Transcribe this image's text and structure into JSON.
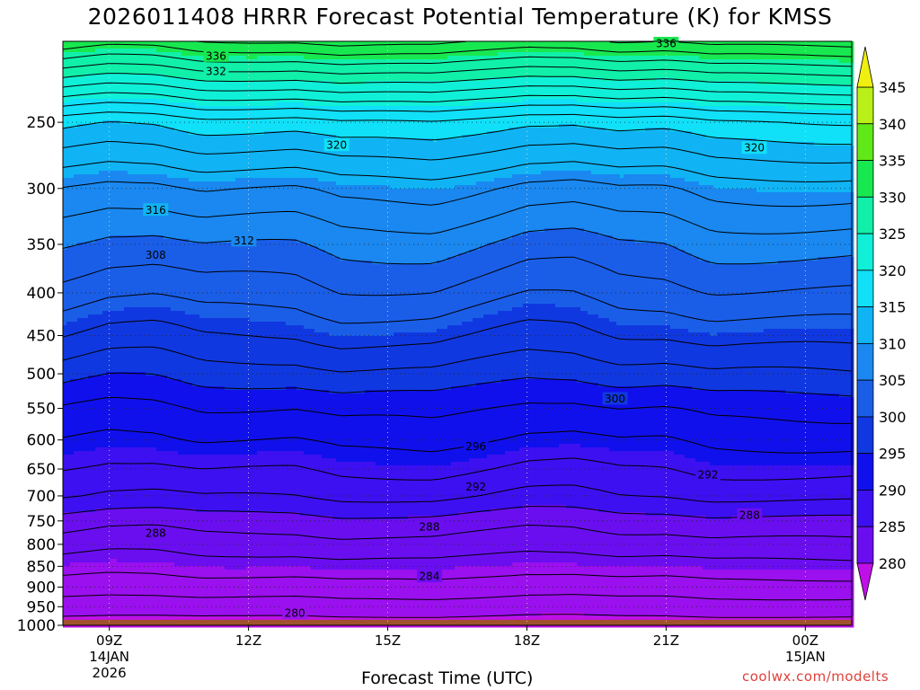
{
  "title": "2026011408 HRRR Forecast Potential Temperature (K) for KMSS",
  "credit": "coolwx.com/modelts",
  "chart_data": {
    "type": "heatmap",
    "title": "2026011408 HRRR Forecast Potential Temperature (K) for KMSS",
    "xlabel": "Forecast Time (UTC)",
    "ylabel": "",
    "x_hours": [
      0,
      1,
      2,
      3,
      4,
      5,
      6,
      7,
      8,
      9,
      10,
      11,
      12,
      13,
      14,
      15,
      16,
      17
    ],
    "x_ticks": [
      {
        "hour": 1,
        "label": "09Z",
        "date": "14JAN",
        "year": "2026"
      },
      {
        "hour": 4,
        "label": "12Z"
      },
      {
        "hour": 7,
        "label": "15Z"
      },
      {
        "hour": 10,
        "label": "18Z"
      },
      {
        "hour": 13,
        "label": "21Z"
      },
      {
        "hour": 16,
        "label": "00Z",
        "date": "15JAN"
      }
    ],
    "y_ticks": [
      250,
      300,
      350,
      400,
      450,
      500,
      550,
      600,
      650,
      700,
      750,
      800,
      850,
      900,
      950,
      1000
    ],
    "ylim": [
      1000,
      200
    ],
    "log_pressure": true,
    "grid": "dotted",
    "levels_hpa": [
      1000,
      950,
      900,
      850,
      800,
      750,
      700,
      650,
      600,
      550,
      500,
      450,
      400,
      350,
      300,
      250,
      200
    ],
    "theta_profile_K": [
      279,
      281,
      283,
      285,
      287,
      289,
      292,
      294,
      296,
      298,
      301,
      304,
      307,
      310,
      314,
      321,
      338
    ],
    "hour_perturbation_K": [
      0,
      -1,
      -1,
      0,
      0,
      0,
      1,
      1,
      1,
      0,
      -1,
      -1,
      0,
      0,
      1,
      1,
      1,
      1
    ],
    "contour_interval_K": 2,
    "contour_labels": [
      {
        "value": "336",
        "hour": 3.3,
        "p": 208
      },
      {
        "value": "336",
        "hour": 13.0,
        "p": 201
      },
      {
        "value": "332",
        "hour": 3.3,
        "p": 217
      },
      {
        "value": "320",
        "hour": 5.9,
        "p": 266
      },
      {
        "value": "320",
        "hour": 14.9,
        "p": 268
      },
      {
        "value": "316",
        "hour": 2.0,
        "p": 318
      },
      {
        "value": "312",
        "hour": 3.9,
        "p": 346
      },
      {
        "value": "308",
        "hour": 2.0,
        "p": 360
      },
      {
        "value": "300",
        "hour": 11.9,
        "p": 535
      },
      {
        "value": "296",
        "hour": 8.9,
        "p": 610
      },
      {
        "value": "292",
        "hour": 8.9,
        "p": 682
      },
      {
        "value": "292",
        "hour": 13.9,
        "p": 660
      },
      {
        "value": "288",
        "hour": 2.0,
        "p": 775
      },
      {
        "value": "288",
        "hour": 7.9,
        "p": 762
      },
      {
        "value": "288",
        "hour": 14.8,
        "p": 737
      },
      {
        "value": "284",
        "hour": 7.9,
        "p": 873
      },
      {
        "value": "280",
        "hour": 5.0,
        "p": 966
      }
    ],
    "colorbar": {
      "min": 275,
      "max": 350,
      "ticks": [
        280,
        285,
        290,
        295,
        300,
        305,
        310,
        315,
        320,
        325,
        330,
        335,
        340,
        345
      ],
      "colors": [
        "#c010e8",
        "#9a10ee",
        "#6a0ef0",
        "#3c10f0",
        "#1010ec",
        "#1038e0",
        "#1a5ee8",
        "#1a88f0",
        "#10b4f4",
        "#10e0f8",
        "#10f0d8",
        "#10f0a8",
        "#18e850",
        "#60e818",
        "#b8f018",
        "#f0f010"
      ]
    },
    "ground_color": "#a0522d"
  }
}
